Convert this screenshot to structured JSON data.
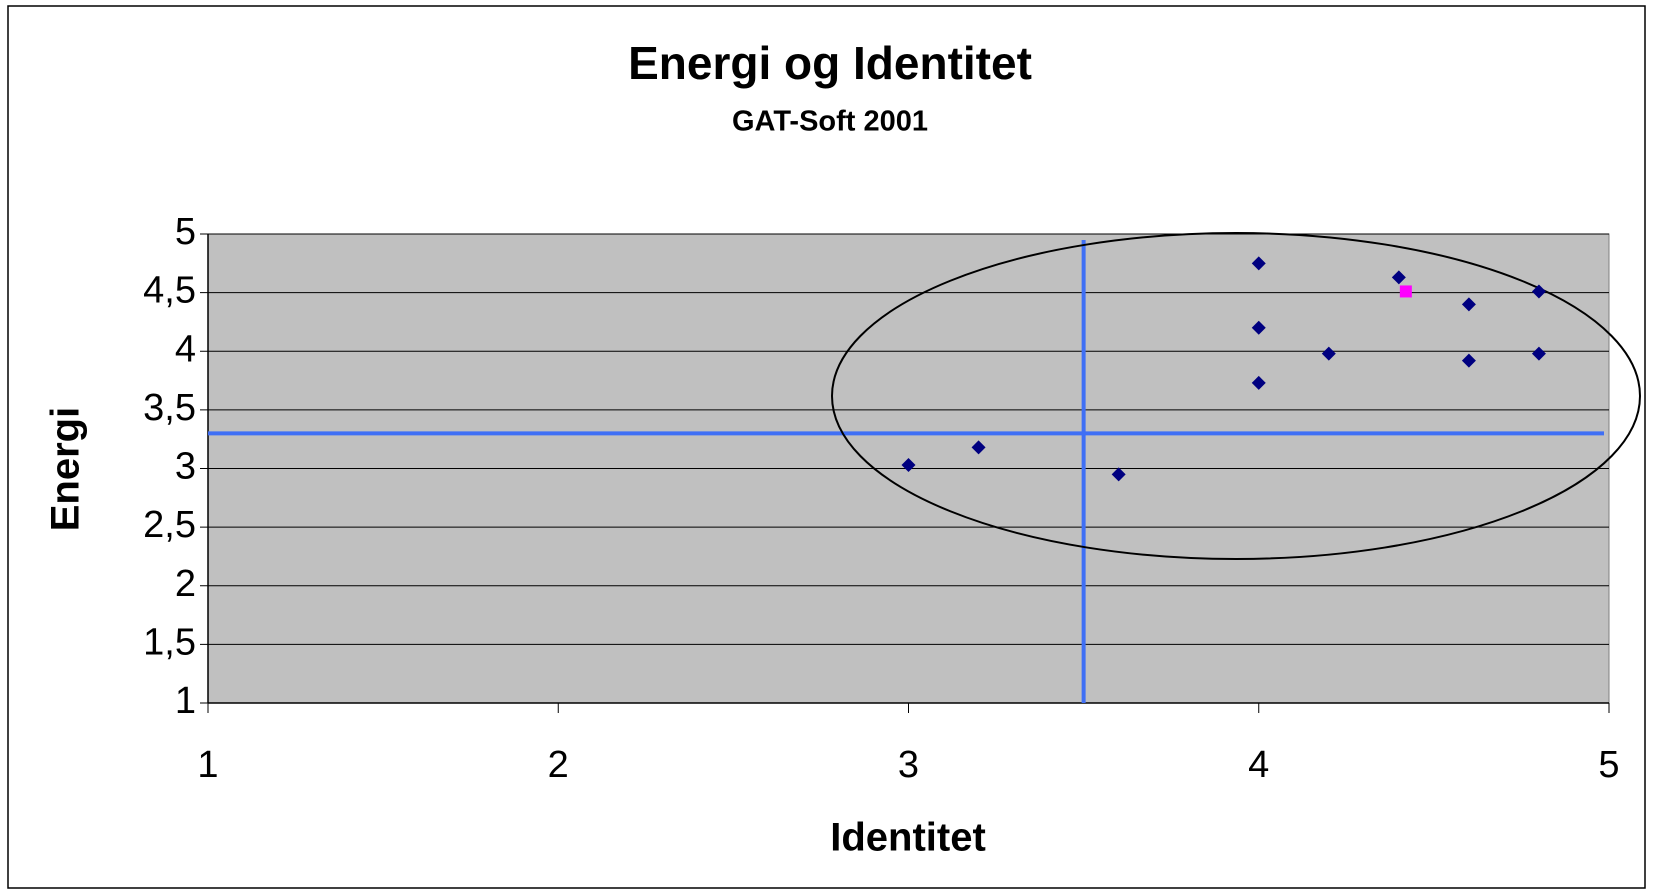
{
  "chart_data": {
    "type": "scatter",
    "title": "Energi og Identitet",
    "subtitle": "GAT-Soft  2001",
    "x_label": "Identitet",
    "y_label": "Energi",
    "xlim": [
      1,
      5
    ],
    "xticks": [
      1,
      2,
      3,
      4,
      5
    ],
    "ylim": [
      1,
      5
    ],
    "yticks": [
      1,
      {
        "value": 1.5,
        "label": "1,5"
      },
      2,
      {
        "value": 2.5,
        "label": "2,5"
      },
      3,
      {
        "value": 3.5,
        "label": "3,5"
      },
      4,
      {
        "value": 4.5,
        "label": "4,5"
      },
      5
    ],
    "grid": true,
    "plot_background": "#c0c0c0",
    "series": [
      {
        "color": "#000080",
        "marker": "diamond",
        "x": [
          4.0,
          4.0,
          4.0,
          4.2,
          4.4,
          4.6,
          4.6,
          4.8,
          4.8,
          3.0,
          3.2,
          3.6
        ],
        "values": [
          4.75,
          4.2,
          3.73,
          3.98,
          4.63,
          4.4,
          3.92,
          4.51,
          3.98,
          3.03,
          3.18,
          2.95
        ]
      },
      {
        "color": "#ff00ff",
        "marker": "square",
        "x": [
          4.42
        ],
        "values": [
          4.51
        ]
      }
    ],
    "reference_lines": {
      "color": "#3f6ff5",
      "x": 3.5,
      "y": 3.3
    }
  }
}
